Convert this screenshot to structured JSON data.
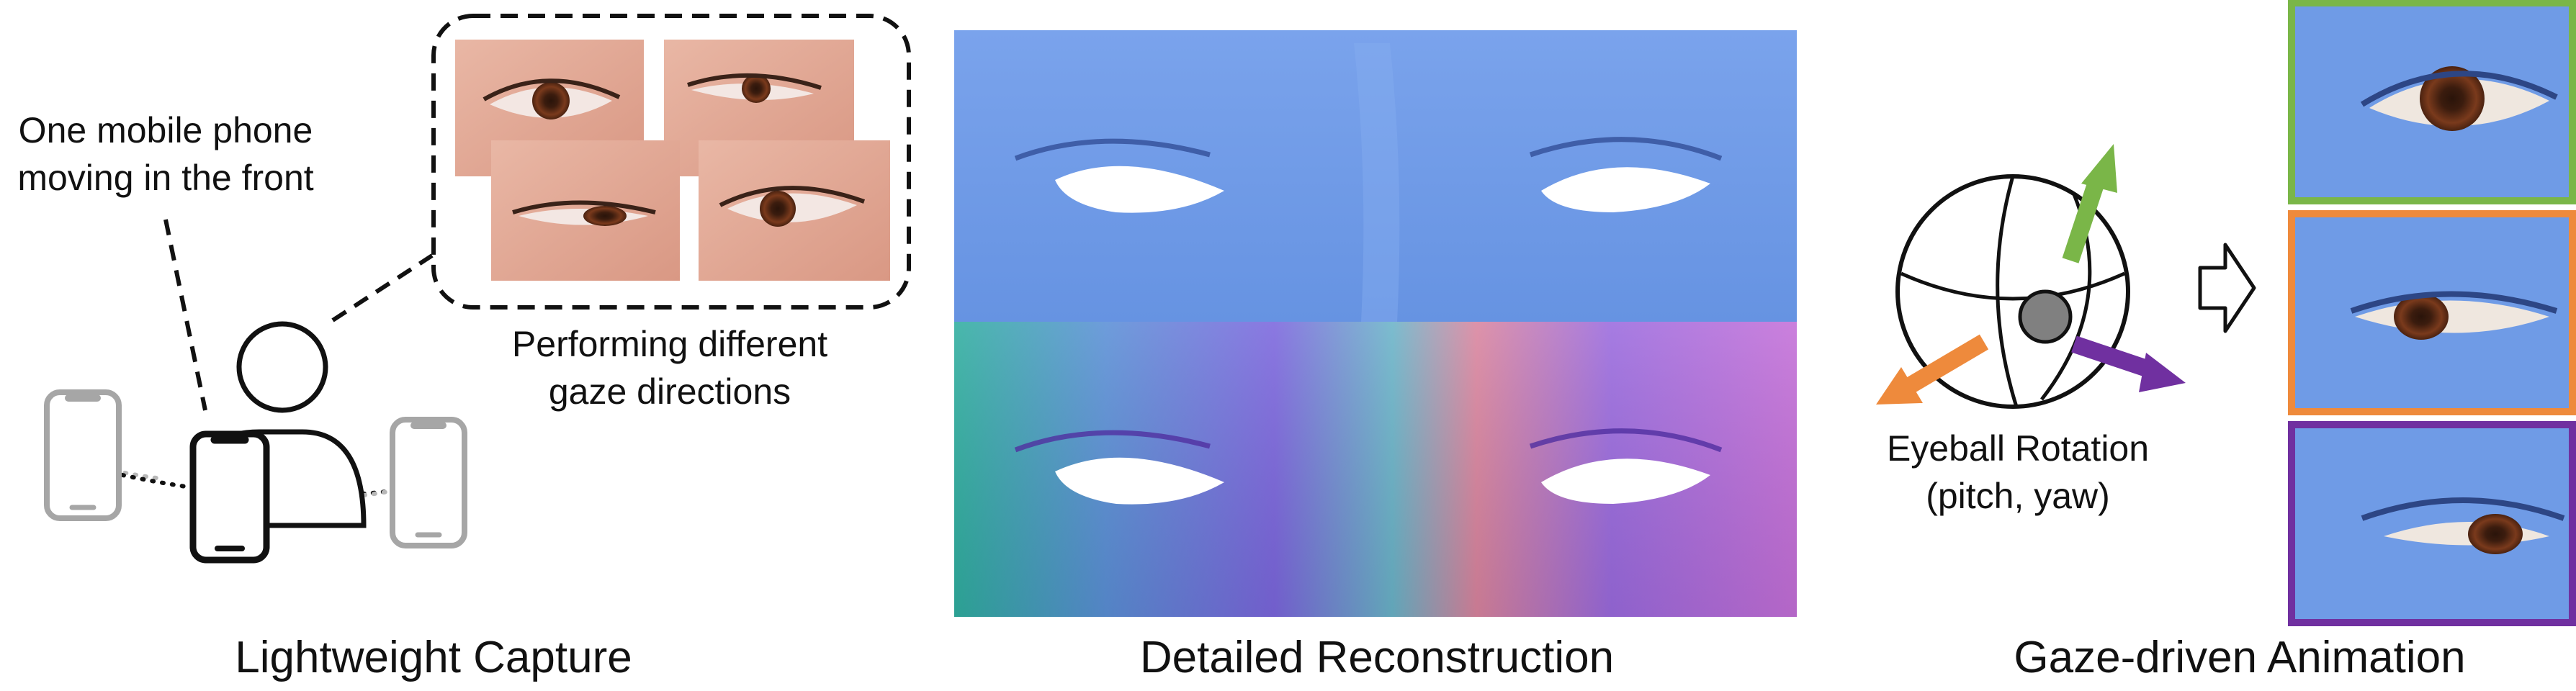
{
  "capture": {
    "caption": "Lightweight Capture",
    "phone_note_line1": "One mobile phone",
    "phone_note_line2": "moving in the front",
    "gaze_note_line1": "Performing different",
    "gaze_note_line2": "gaze directions"
  },
  "reconstruction": {
    "caption": "Detailed Reconstruction"
  },
  "animation": {
    "caption": "Gaze-driven Animation",
    "rotation_label_line1": "Eyeball Rotation",
    "rotation_label_line2": "(pitch, yaw)"
  },
  "colors": {
    "mesh_blue": "#6f9be6",
    "arrow_green": "#7ab648",
    "arrow_orange": "#ee8a3c",
    "arrow_purple": "#7030a0",
    "frame_green": "#7ab648",
    "frame_orange": "#ee8a3c",
    "frame_purple": "#7030a0",
    "phone_gray": "#a6a6a6"
  }
}
